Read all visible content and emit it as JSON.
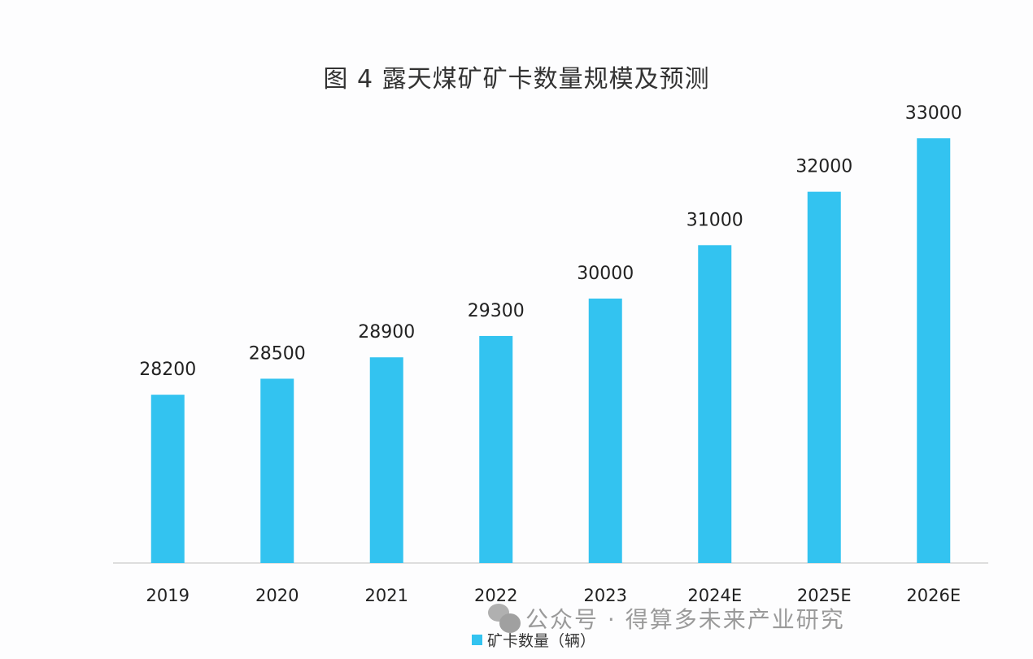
{
  "chart_data": {
    "type": "bar",
    "title": "图 4 露天煤矿矿卡数量规模及预测",
    "categories": [
      "2019",
      "2020",
      "2021",
      "2022",
      "2023",
      "2024E",
      "2025E",
      "2026E"
    ],
    "series": [
      {
        "name": "矿卡数量（辆）",
        "values": [
          28200,
          28500,
          28900,
          29300,
          30000,
          31000,
          32000,
          33000
        ],
        "color": "#33c3f0"
      }
    ],
    "xlabel": "",
    "ylabel": "",
    "ylim": [
      25050,
      33000
    ],
    "grid": false,
    "legend_position": "bottom-center",
    "data_labels": true
  },
  "watermark": "公众号 · 得算多未来产业研究"
}
